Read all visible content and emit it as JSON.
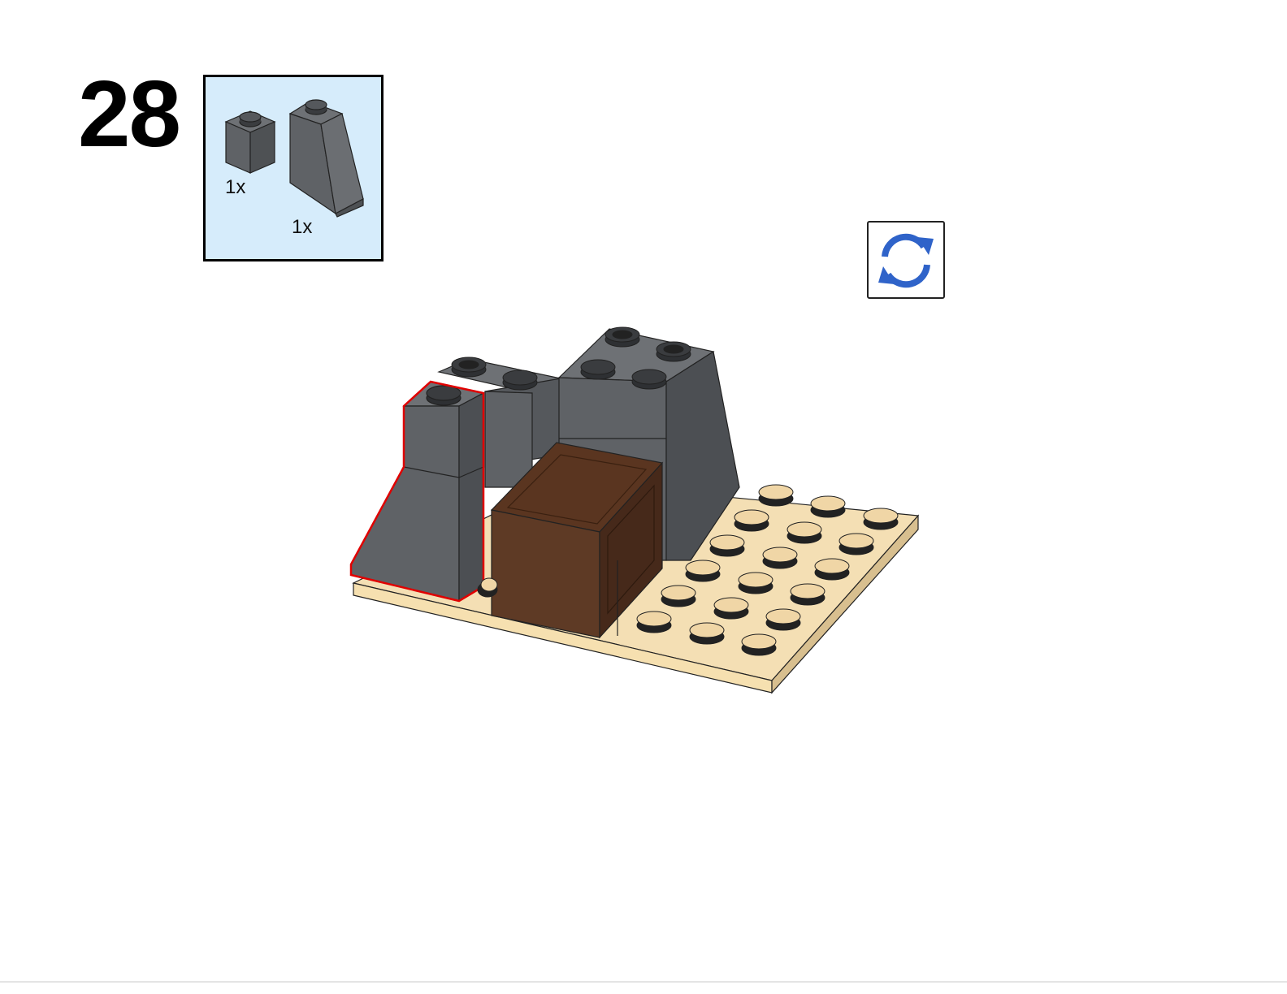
{
  "step": {
    "number": "28"
  },
  "parts": [
    {
      "name": "brick-1x1",
      "color": "#5f6266",
      "quantity": "1x"
    },
    {
      "name": "slope-brick-2x1x3",
      "color": "#5f6266",
      "quantity": "1x"
    }
  ],
  "colors": {
    "parts_box_bg": "#d6ecfb",
    "dark_bluish_gray": "#5f6266",
    "tan": "#f0d6a6",
    "reddish_brown": "#5c3a24",
    "highlight": "#e00000",
    "rotate_icon": "#2f63c9"
  },
  "icons": {
    "rotate": "rotate-arrows-icon"
  }
}
